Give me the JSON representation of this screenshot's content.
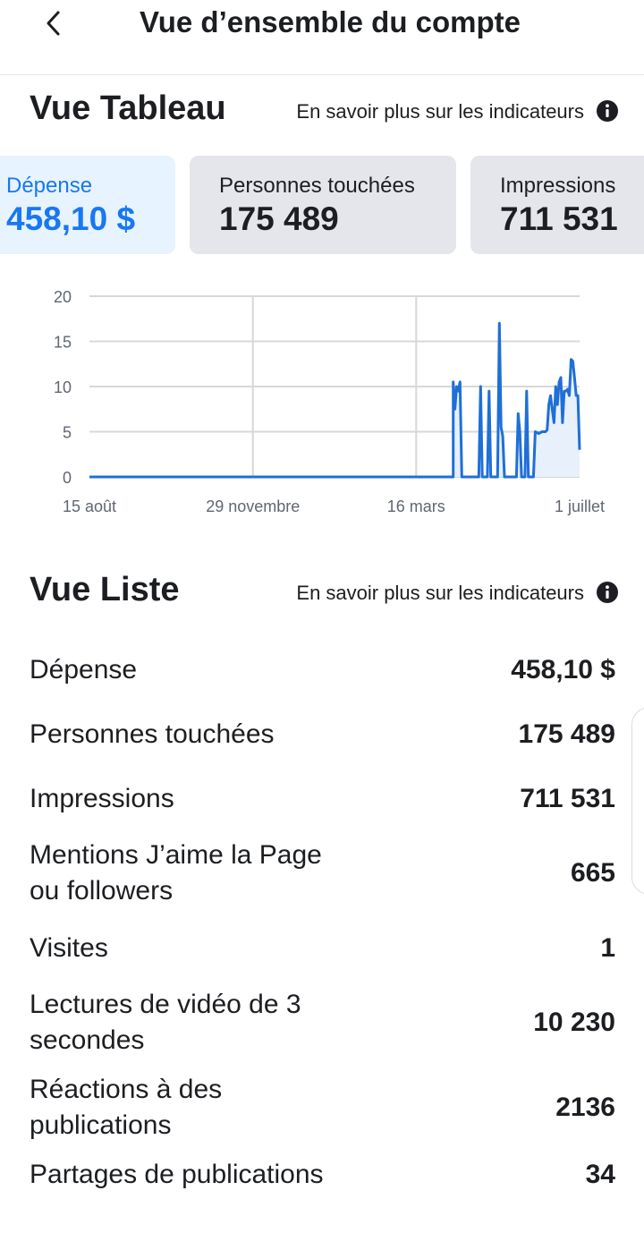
{
  "header": {
    "title": "Vue d’ensemble du compte",
    "back_icon": "chevron-left-icon"
  },
  "table_view": {
    "title": "Vue Tableau",
    "learn_more": "En savoir plus sur les indicateurs",
    "info_icon": "info-icon"
  },
  "cards": [
    {
      "label": "Dépense",
      "value": "458,10 $",
      "selected": true
    },
    {
      "label": "Personnes touchées",
      "value": "175 489",
      "selected": false
    },
    {
      "label": "Impressions",
      "value": "711 531",
      "selected": false
    }
  ],
  "colors": {
    "accent": "#1877f2",
    "line": "#1f6fd8",
    "selected_card_bg": "#e7f3ff",
    "card_bg": "#e4e6eb"
  },
  "chart_data": {
    "type": "area",
    "title": "",
    "xlabel": "",
    "ylabel": "",
    "ylim": [
      0,
      20
    ],
    "yticks": [
      "0",
      "5",
      "10",
      "15",
      "20"
    ],
    "xticks": [
      "15 août",
      "29 novembre",
      "16 mars",
      "1 juillet"
    ],
    "grid": true,
    "series": [
      {
        "values": [
          {
            "x": 0,
            "y": 0
          },
          {
            "x": 213,
            "y": 0
          },
          {
            "x": 213,
            "y": 10.5
          },
          {
            "x": 214,
            "y": 7.5
          },
          {
            "x": 215,
            "y": 10
          },
          {
            "x": 216,
            "y": 9.5
          },
          {
            "x": 217,
            "y": 10.5
          },
          {
            "x": 218,
            "y": 0
          },
          {
            "x": 228,
            "y": 0
          },
          {
            "x": 229,
            "y": 10
          },
          {
            "x": 230,
            "y": 0
          },
          {
            "x": 233,
            "y": 0
          },
          {
            "x": 234,
            "y": 9.5
          },
          {
            "x": 235,
            "y": 0
          },
          {
            "x": 239,
            "y": 0
          },
          {
            "x": 240,
            "y": 17
          },
          {
            "x": 241,
            "y": 5.5
          },
          {
            "x": 242,
            "y": 4.5
          },
          {
            "x": 243,
            "y": 0
          },
          {
            "x": 250,
            "y": 0
          },
          {
            "x": 251,
            "y": 7
          },
          {
            "x": 252,
            "y": 5
          },
          {
            "x": 253,
            "y": 0
          },
          {
            "x": 255,
            "y": 0
          },
          {
            "x": 256,
            "y": 9.5
          },
          {
            "x": 257,
            "y": 0
          },
          {
            "x": 260,
            "y": 0
          },
          {
            "x": 261,
            "y": 5
          },
          {
            "x": 263,
            "y": 4.8
          },
          {
            "x": 265,
            "y": 5
          },
          {
            "x": 267,
            "y": 5
          },
          {
            "x": 268,
            "y": 5.2
          },
          {
            "x": 269,
            "y": 8
          },
          {
            "x": 270,
            "y": 9
          },
          {
            "x": 271,
            "y": 7.5
          },
          {
            "x": 272,
            "y": 6
          },
          {
            "x": 273,
            "y": 10
          },
          {
            "x": 274,
            "y": 8
          },
          {
            "x": 275,
            "y": 10.5
          },
          {
            "x": 276,
            "y": 11
          },
          {
            "x": 277,
            "y": 6
          },
          {
            "x": 278,
            "y": 9.5
          },
          {
            "x": 279,
            "y": 9.5
          },
          {
            "x": 280,
            "y": 9.7
          },
          {
            "x": 281,
            "y": 9
          },
          {
            "x": 282,
            "y": 13
          },
          {
            "x": 283,
            "y": 12.8
          },
          {
            "x": 284,
            "y": 11
          },
          {
            "x": 285,
            "y": 9
          },
          {
            "x": 286,
            "y": 9
          },
          {
            "x": 287,
            "y": 3
          }
        ]
      }
    ]
  },
  "list_view": {
    "title": "Vue Liste",
    "learn_more": "En savoir plus sur les indicateurs",
    "info_icon": "info-icon",
    "rows": [
      {
        "label": "Dépense",
        "value": "458,10 $"
      },
      {
        "label": "Personnes touchées",
        "value": "175 489"
      },
      {
        "label": "Impressions",
        "value": "711 531"
      },
      {
        "label": "Mentions J’aime la Page ou followers",
        "value": "665"
      },
      {
        "label": "Visites",
        "value": "1"
      },
      {
        "label": "Lectures de vidéo de 3 secondes",
        "value": "10 230"
      },
      {
        "label": "Réactions à des publications",
        "value": "2136"
      },
      {
        "label": "Partages de publications",
        "value": "34"
      }
    ]
  }
}
